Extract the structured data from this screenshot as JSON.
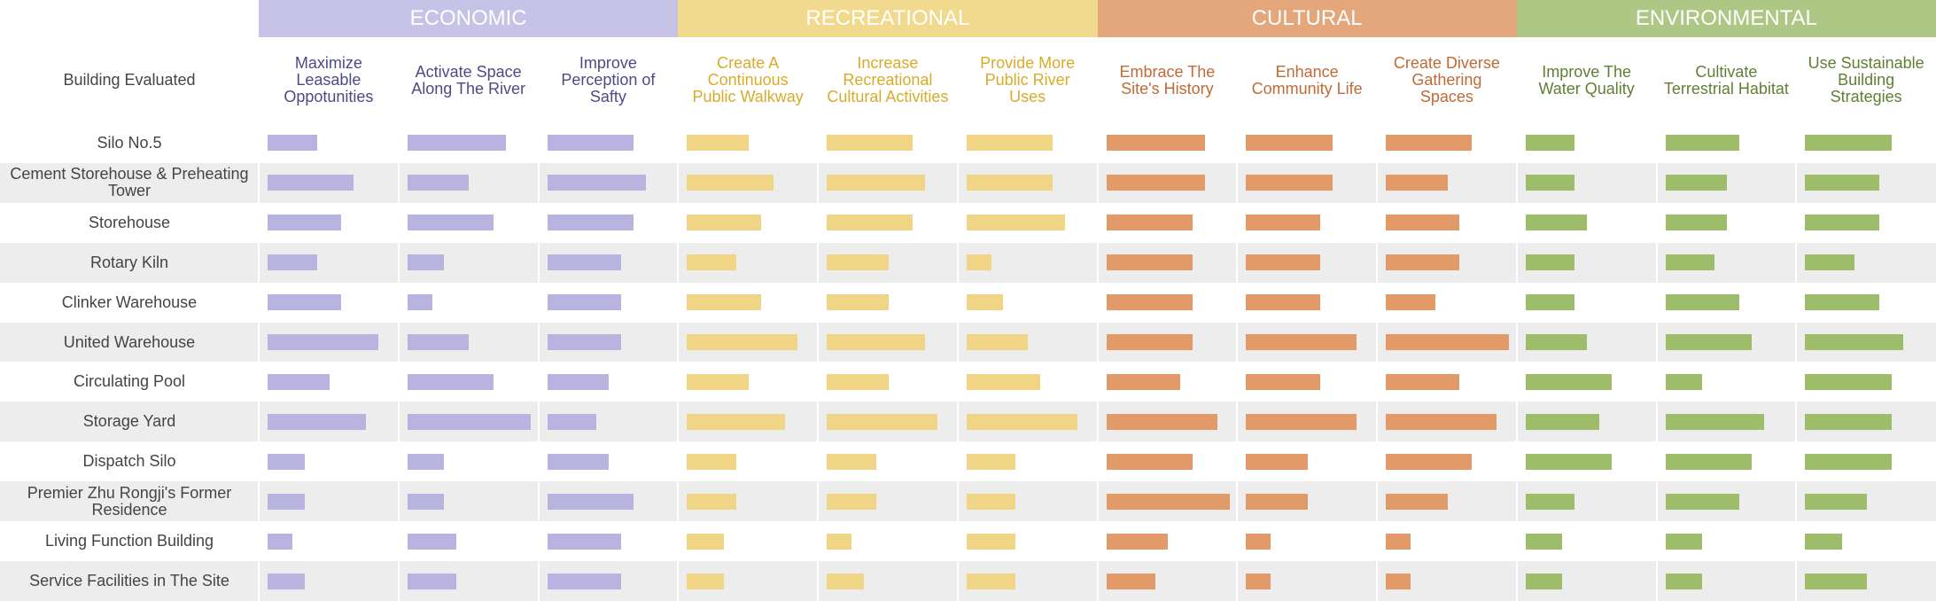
{
  "chart_data": {
    "type": "bar_matrix",
    "row_header": "Building Evaluated",
    "categories": [
      "Silo No.5",
      "Cement Storehouse & Preheating Tower",
      "Storehouse",
      "Rotary Kiln",
      "Clinker Warehouse",
      "United Warehouse",
      "Circulating Pool",
      "Storage Yard",
      "Dispatch Silo",
      "Premier Zhu Rongji's Former Residence",
      "Living Function Building",
      "Service Facilities in The Site"
    ],
    "groups": [
      {
        "name": "ECONOMIC",
        "color": "#c6c3e6",
        "bar_color": "#b8b4df",
        "text_color": "#4d4a86",
        "series": [
          {
            "name": "Maximize Leasable Oppotunities",
            "values": [
              4,
              7,
              6,
              4,
              6,
              9,
              5,
              8,
              3,
              3,
              2,
              3
            ]
          },
          {
            "name": "Activate Space Along The River",
            "values": [
              8,
              5,
              7,
              3,
              2,
              5,
              7,
              10,
              3,
              3,
              4,
              4
            ]
          },
          {
            "name": "Improve Perception of Safty",
            "values": [
              7,
              8,
              7,
              6,
              6,
              6,
              5,
              4,
              5,
              7,
              6,
              6
            ]
          }
        ]
      },
      {
        "name": "RECREATIONAL",
        "color": "#f1da8e",
        "bar_color": "#efd585",
        "text_color": "#d9ab2a",
        "series": [
          {
            "name": "Create A Continuous Public Walkway",
            "values": [
              5,
              7,
              6,
              4,
              6,
              9,
              5,
              8,
              4,
              4,
              3,
              3
            ]
          },
          {
            "name": "Increase Recreational Cultural Activities",
            "values": [
              7,
              8,
              7,
              5,
              5,
              8,
              5,
              9,
              4,
              4,
              2,
              3
            ]
          },
          {
            "name": "Provide More Public River Uses",
            "values": [
              7,
              7,
              8,
              2,
              3,
              5,
              6,
              9,
              4,
              4,
              4,
              4
            ]
          }
        ]
      },
      {
        "name": "CULTURAL",
        "color": "#e4a77b",
        "bar_color": "#e29a68",
        "text_color": "#c06a36",
        "series": [
          {
            "name": "Embrace The Site's History",
            "values": [
              8,
              8,
              7,
              7,
              7,
              7,
              6,
              9,
              7,
              10,
              5,
              4
            ]
          },
          {
            "name": "Enhance Community Life",
            "values": [
              7,
              7,
              6,
              6,
              6,
              9,
              6,
              9,
              5,
              5,
              2,
              2
            ]
          },
          {
            "name": "Create Diverse Gathering Spaces",
            "values": [
              7,
              5,
              6,
              6,
              4,
              10,
              6,
              9,
              7,
              5,
              2,
              2
            ]
          }
        ]
      },
      {
        "name": "ENVIRONMENTAL",
        "color": "#afc784",
        "bar_color": "#9dbd6b",
        "text_color": "#5f7f33",
        "series": [
          {
            "name": "Improve The Water Quality",
            "values": [
              4,
              4,
              5,
              4,
              4,
              5,
              7,
              6,
              7,
              4,
              3,
              3
            ]
          },
          {
            "name": "Cultivate Terrestrial Habitat",
            "values": [
              6,
              5,
              5,
              4,
              6,
              7,
              3,
              8,
              7,
              6,
              3,
              3
            ]
          },
          {
            "name": "Use Sustainable Building Strategies",
            "values": [
              7,
              6,
              6,
              4,
              6,
              8,
              7,
              7,
              7,
              5,
              3,
              5
            ]
          }
        ]
      }
    ]
  }
}
